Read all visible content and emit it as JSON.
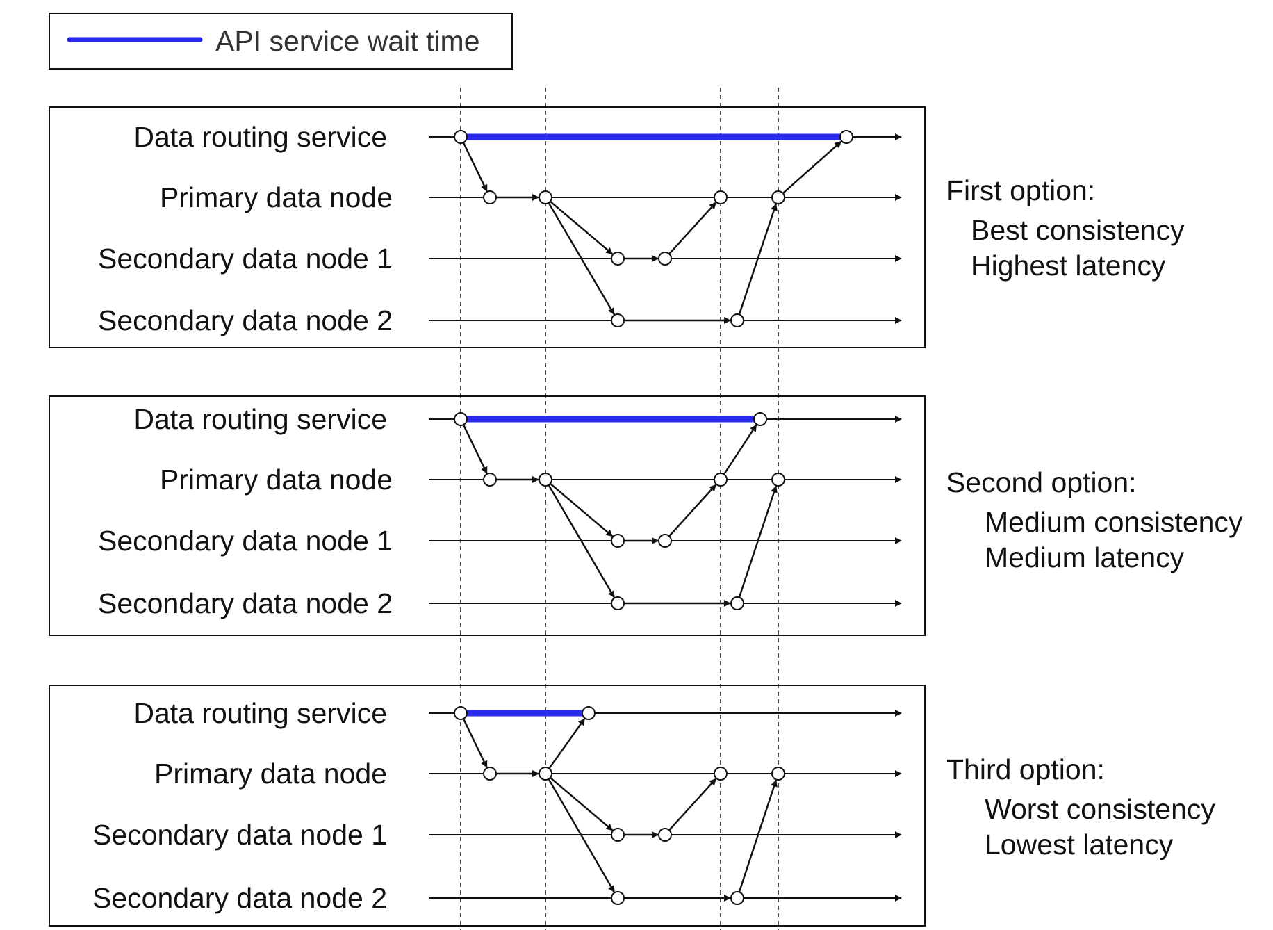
{
  "legend": {
    "label": "API service wait time",
    "color": "#2a2af0"
  },
  "colors": {
    "line": "#111111",
    "wait": "#2a2af0",
    "node_fill": "#ffffff"
  },
  "lane_labels": [
    "Data routing service",
    "Primary data node",
    "Secondary data node 1",
    "Secondary data node 2"
  ],
  "panels": [
    {
      "title": "First option:",
      "lines": [
        "Best consistency",
        "Highest latency"
      ],
      "returns_after": "Primary data node receives acknowledgements from both secondary data nodes"
    },
    {
      "title": "Second option:",
      "lines": [
        "Medium consistency",
        "Medium latency"
      ],
      "returns_after": "Primary data node receives acknowledgement from secondary data node 1"
    },
    {
      "title": "Third option:",
      "lines": [
        "Worst consistency",
        "Lowest latency"
      ],
      "returns_after": "Primary data node writes locally"
    }
  ]
}
